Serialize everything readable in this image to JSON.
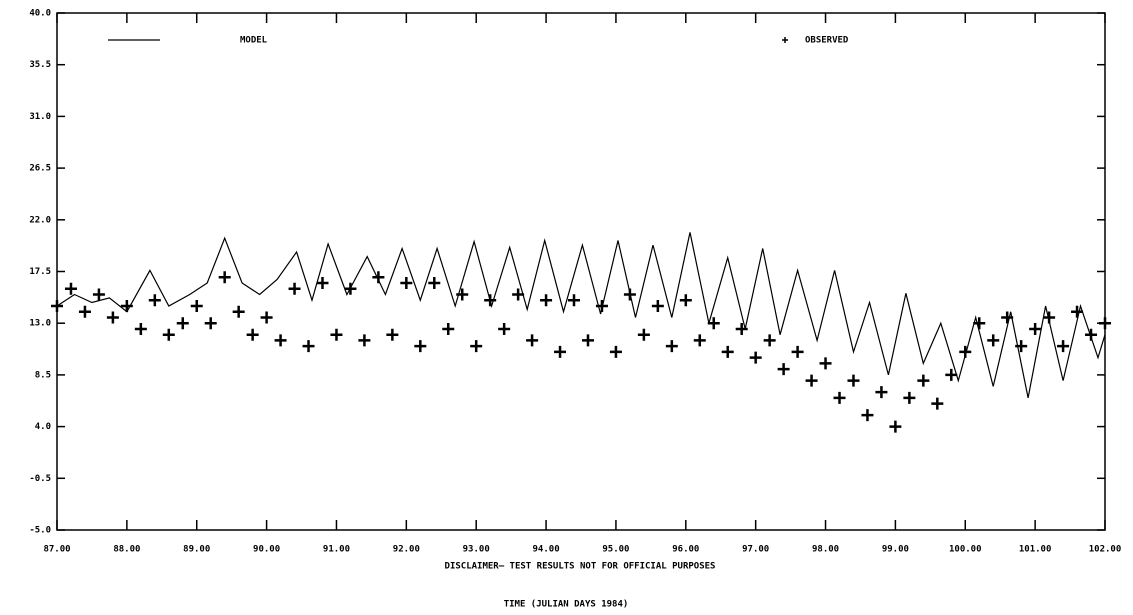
{
  "chart_data": {
    "type": "line",
    "xlabel": "TIME (JULIAN DAYS 1984)",
    "annotation": "DISCLAIMER— TEST RESULTS NOT FOR OFFICIAL PURPOSES",
    "xlim": [
      87,
      102
    ],
    "xticks": [
      {
        "value": 87,
        "label": "87.00"
      },
      {
        "value": 88,
        "label": "88.00"
      },
      {
        "value": 89,
        "label": "89.00"
      },
      {
        "value": 90,
        "label": "90.00"
      },
      {
        "value": 91,
        "label": "91.00"
      },
      {
        "value": 92,
        "label": "92.00"
      },
      {
        "value": 93,
        "label": "93.00"
      },
      {
        "value": 94,
        "label": "94.00"
      },
      {
        "value": 95,
        "label": "95.00"
      },
      {
        "value": 96,
        "label": "96.00"
      },
      {
        "value": 97,
        "label": "97.00"
      },
      {
        "value": 98,
        "label": "98.00"
      },
      {
        "value": 99,
        "label": "99.00"
      },
      {
        "value": 100,
        "label": "100.00"
      },
      {
        "value": 101,
        "label": "101.00"
      },
      {
        "value": 102,
        "label": "102.00"
      }
    ],
    "ylim": [
      -5,
      40
    ],
    "yticks": [
      {
        "value": -5,
        "label": "-5.0"
      },
      {
        "value": -0.5,
        "label": "-0.5"
      },
      {
        "value": 4,
        "label": "4.0"
      },
      {
        "value": 8.5,
        "label": "8.5"
      },
      {
        "value": 13,
        "label": "13.0"
      },
      {
        "value": 17.5,
        "label": "17.5"
      },
      {
        "value": 22,
        "label": "22.0"
      },
      {
        "value": 26.5,
        "label": "26.5"
      },
      {
        "value": 31,
        "label": "31.0"
      },
      {
        "value": 35.5,
        "label": "35.5"
      },
      {
        "value": 40,
        "label": "40.0"
      }
    ],
    "series": [
      {
        "name": "MODEL",
        "color": "#000000",
        "marker": "line",
        "x": [
          87.0,
          87.25,
          87.5,
          87.75,
          88.0,
          88.33,
          88.6,
          88.9,
          89.15,
          89.4,
          89.65,
          89.9,
          90.15,
          90.43,
          90.65,
          90.88,
          91.15,
          91.44,
          91.7,
          91.94,
          92.2,
          92.44,
          92.7,
          92.97,
          93.22,
          93.48,
          93.73,
          93.98,
          94.25,
          94.52,
          94.78,
          95.03,
          95.28,
          95.53,
          95.8,
          96.06,
          96.33,
          96.6,
          96.85,
          97.1,
          97.35,
          97.6,
          97.88,
          98.13,
          98.4,
          98.63,
          98.9,
          99.15,
          99.4,
          99.65,
          99.9,
          100.15,
          100.4,
          100.65,
          100.9,
          101.15,
          101.4,
          101.65,
          101.9,
          102.0
        ],
        "values": [
          14.5,
          15.5,
          14.8,
          15.2,
          14.0,
          17.6,
          14.5,
          15.5,
          16.5,
          20.4,
          16.5,
          15.5,
          16.8,
          19.2,
          15.0,
          19.9,
          15.5,
          18.8,
          15.5,
          19.5,
          15.0,
          19.5,
          14.5,
          20.1,
          14.5,
          19.6,
          14.2,
          20.2,
          14.0,
          19.8,
          13.8,
          20.2,
          13.5,
          19.8,
          13.5,
          20.9,
          13.0,
          18.7,
          12.5,
          19.5,
          12.0,
          17.6,
          11.5,
          17.6,
          10.5,
          14.8,
          8.5,
          15.6,
          9.5,
          13.0,
          8.0,
          13.5,
          7.5,
          14.0,
          6.5,
          14.5,
          8.0,
          14.5,
          10.0,
          12.0
        ]
      },
      {
        "name": "OBSERVED",
        "color": "#000000",
        "marker": "plus",
        "x": [
          87.0,
          87.2,
          87.4,
          87.6,
          87.8,
          88.0,
          88.2,
          88.4,
          88.6,
          88.8,
          89.0,
          89.2,
          89.4,
          89.6,
          89.8,
          90.0,
          90.2,
          90.4,
          90.6,
          90.8,
          91.0,
          91.2,
          91.4,
          91.6,
          91.8,
          92.0,
          92.2,
          92.4,
          92.6,
          92.8,
          93.0,
          93.2,
          93.4,
          93.6,
          93.8,
          94.0,
          94.2,
          94.4,
          94.6,
          94.8,
          95.0,
          95.2,
          95.4,
          95.6,
          95.8,
          96.0,
          96.2,
          96.4,
          96.6,
          96.8,
          97.0,
          97.2,
          97.4,
          97.6,
          97.8,
          98.0,
          98.2,
          98.4,
          98.6,
          98.8,
          99.0,
          99.2,
          99.4,
          99.6,
          99.8,
          100.0,
          100.2,
          100.4,
          100.6,
          100.8,
          101.0,
          101.2,
          101.4,
          101.6,
          101.8,
          102.0
        ],
        "values": [
          14.5,
          16.0,
          14.0,
          15.5,
          13.5,
          14.5,
          12.5,
          15.0,
          12.0,
          13.0,
          14.5,
          13.0,
          17.0,
          14.0,
          12.0,
          13.5,
          11.5,
          16.0,
          11.0,
          16.5,
          12.0,
          16.0,
          11.5,
          17.0,
          12.0,
          16.5,
          11.0,
          16.5,
          12.5,
          15.5,
          11.0,
          15.0,
          12.5,
          15.5,
          11.5,
          15.0,
          10.5,
          15.0,
          11.5,
          14.5,
          10.5,
          15.5,
          12.0,
          14.5,
          11.0,
          15.0,
          11.5,
          13.0,
          10.5,
          12.5,
          10.0,
          11.5,
          9.0,
          10.5,
          8.0,
          9.5,
          6.5,
          8.0,
          5.0,
          7.0,
          4.0,
          6.5,
          8.0,
          6.0,
          8.5,
          10.5,
          13.0,
          11.5,
          13.5,
          11.0,
          12.5,
          13.5,
          11.0,
          14.0,
          12.0,
          13.0
        ]
      }
    ]
  }
}
